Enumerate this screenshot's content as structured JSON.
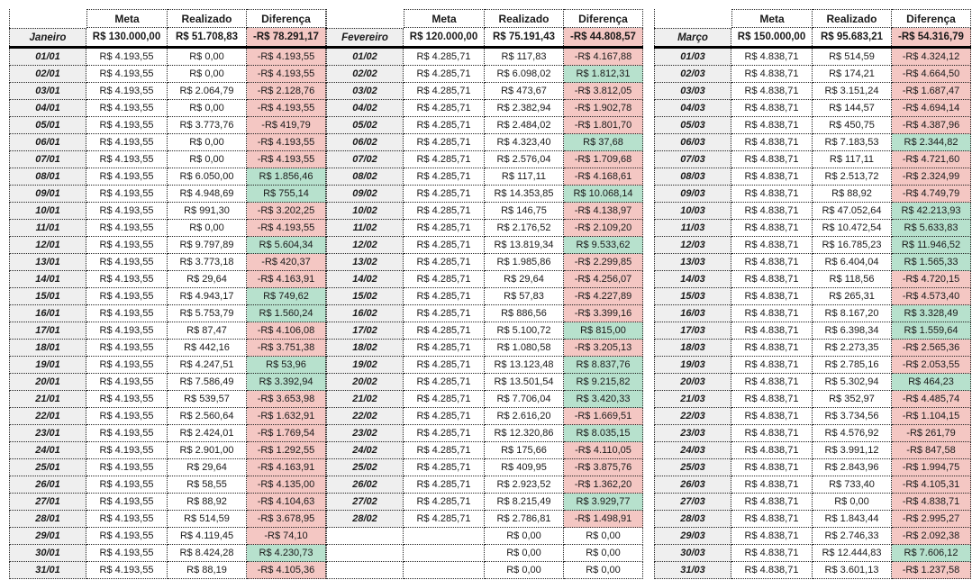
{
  "column_headers": [
    "Meta",
    "Realizado",
    "Diferença"
  ],
  "colors": {
    "negative_bg": "#f4c7c3",
    "positive_bg": "#b7e1cd",
    "label_bg": "#efefef",
    "border": "#222222"
  },
  "months": [
    {
      "name": "Janeiro",
      "meta_total": "R$ 130.000,00",
      "realizado_total": "R$ 51.708,83",
      "diferenca_total": "-R$ 78.291,17",
      "total_sign": "neg",
      "rows": [
        [
          "01/01",
          "R$ 4.193,55",
          "R$ 0,00",
          "-R$ 4.193,55",
          "neg"
        ],
        [
          "02/01",
          "R$ 4.193,55",
          "R$ 0,00",
          "-R$ 4.193,55",
          "neg"
        ],
        [
          "03/01",
          "R$ 4.193,55",
          "R$ 2.064,79",
          "-R$ 2.128,76",
          "neg"
        ],
        [
          "04/01",
          "R$ 4.193,55",
          "R$ 0,00",
          "-R$ 4.193,55",
          "neg"
        ],
        [
          "05/01",
          "R$ 4.193,55",
          "R$ 3.773,76",
          "-R$ 419,79",
          "neg"
        ],
        [
          "06/01",
          "R$ 4.193,55",
          "R$ 0,00",
          "-R$ 4.193,55",
          "neg"
        ],
        [
          "07/01",
          "R$ 4.193,55",
          "R$ 0,00",
          "-R$ 4.193,55",
          "neg"
        ],
        [
          "08/01",
          "R$ 4.193,55",
          "R$ 6.050,00",
          "R$ 1.856,46",
          "pos"
        ],
        [
          "09/01",
          "R$ 4.193,55",
          "R$ 4.948,69",
          "R$ 755,14",
          "pos"
        ],
        [
          "10/01",
          "R$ 4.193,55",
          "R$ 991,30",
          "-R$ 3.202,25",
          "neg"
        ],
        [
          "11/01",
          "R$ 4.193,55",
          "R$ 0,00",
          "-R$ 4.193,55",
          "neg"
        ],
        [
          "12/01",
          "R$ 4.193,55",
          "R$ 9.797,89",
          "R$ 5.604,34",
          "pos"
        ],
        [
          "13/01",
          "R$ 4.193,55",
          "R$ 3.773,18",
          "-R$ 420,37",
          "neg"
        ],
        [
          "14/01",
          "R$ 4.193,55",
          "R$ 29,64",
          "-R$ 4.163,91",
          "neg"
        ],
        [
          "15/01",
          "R$ 4.193,55",
          "R$ 4.943,17",
          "R$ 749,62",
          "pos"
        ],
        [
          "16/01",
          "R$ 4.193,55",
          "R$ 5.753,79",
          "R$ 1.560,24",
          "pos"
        ],
        [
          "17/01",
          "R$ 4.193,55",
          "R$ 87,47",
          "-R$ 4.106,08",
          "neg"
        ],
        [
          "18/01",
          "R$ 4.193,55",
          "R$ 442,16",
          "-R$ 3.751,38",
          "neg"
        ],
        [
          "19/01",
          "R$ 4.193,55",
          "R$ 4.247,51",
          "R$ 53,96",
          "pos"
        ],
        [
          "20/01",
          "R$ 4.193,55",
          "R$ 7.586,49",
          "R$ 3.392,94",
          "pos"
        ],
        [
          "21/01",
          "R$ 4.193,55",
          "R$ 539,57",
          "-R$ 3.653,98",
          "neg"
        ],
        [
          "22/01",
          "R$ 4.193,55",
          "R$ 2.560,64",
          "-R$ 1.632,91",
          "neg"
        ],
        [
          "23/01",
          "R$ 4.193,55",
          "R$ 2.424,01",
          "-R$ 1.769,54",
          "neg"
        ],
        [
          "24/01",
          "R$ 4.193,55",
          "R$ 2.901,00",
          "-R$ 1.292,55",
          "neg"
        ],
        [
          "25/01",
          "R$ 4.193,55",
          "R$ 29,64",
          "-R$ 4.163,91",
          "neg"
        ],
        [
          "26/01",
          "R$ 4.193,55",
          "R$ 58,55",
          "-R$ 4.135,00",
          "neg"
        ],
        [
          "27/01",
          "R$ 4.193,55",
          "R$ 88,92",
          "-R$ 4.104,63",
          "neg"
        ],
        [
          "28/01",
          "R$ 4.193,55",
          "R$ 514,59",
          "-R$ 3.678,95",
          "neg"
        ],
        [
          "29/01",
          "R$ 4.193,55",
          "R$ 4.119,45",
          "-R$ 74,10",
          "neg"
        ],
        [
          "30/01",
          "R$ 4.193,55",
          "R$ 8.424,28",
          "R$ 4.230,73",
          "pos"
        ],
        [
          "31/01",
          "R$ 4.193,55",
          "R$ 88,19",
          "-R$ 4.105,36",
          "neg"
        ]
      ]
    },
    {
      "name": "Fevereiro",
      "meta_total": "R$ 120.000,00",
      "realizado_total": "R$ 75.191,43",
      "diferenca_total": "-R$ 44.808,57",
      "total_sign": "neg",
      "rows": [
        [
          "01/02",
          "R$ 4.285,71",
          "R$ 117,83",
          "-R$ 4.167,88",
          "neg"
        ],
        [
          "02/02",
          "R$ 4.285,71",
          "R$ 6.098,02",
          "R$ 1.812,31",
          "pos"
        ],
        [
          "03/02",
          "R$ 4.285,71",
          "R$ 473,67",
          "-R$ 3.812,05",
          "neg"
        ],
        [
          "04/02",
          "R$ 4.285,71",
          "R$ 2.382,94",
          "-R$ 1.902,78",
          "neg"
        ],
        [
          "05/02",
          "R$ 4.285,71",
          "R$ 2.484,02",
          "-R$ 1.801,70",
          "neg"
        ],
        [
          "06/02",
          "R$ 4.285,71",
          "R$ 4.323,40",
          "R$ 37,68",
          "pos"
        ],
        [
          "07/02",
          "R$ 4.285,71",
          "R$ 2.576,04",
          "-R$ 1.709,68",
          "neg"
        ],
        [
          "08/02",
          "R$ 4.285,71",
          "R$ 117,11",
          "-R$ 4.168,61",
          "neg"
        ],
        [
          "09/02",
          "R$ 4.285,71",
          "R$ 14.353,85",
          "R$ 10.068,14",
          "pos"
        ],
        [
          "10/02",
          "R$ 4.285,71",
          "R$ 146,75",
          "-R$ 4.138,97",
          "neg"
        ],
        [
          "11/02",
          "R$ 4.285,71",
          "R$ 2.176,52",
          "-R$ 2.109,20",
          "neg"
        ],
        [
          "12/02",
          "R$ 4.285,71",
          "R$ 13.819,34",
          "R$ 9.533,62",
          "pos"
        ],
        [
          "13/02",
          "R$ 4.285,71",
          "R$ 1.985,86",
          "-R$ 2.299,85",
          "neg"
        ],
        [
          "14/02",
          "R$ 4.285,71",
          "R$ 29,64",
          "-R$ 4.256,07",
          "neg"
        ],
        [
          "15/02",
          "R$ 4.285,71",
          "R$ 57,83",
          "-R$ 4.227,89",
          "neg"
        ],
        [
          "16/02",
          "R$ 4.285,71",
          "R$ 886,56",
          "-R$ 3.399,16",
          "neg"
        ],
        [
          "17/02",
          "R$ 4.285,71",
          "R$ 5.100,72",
          "R$ 815,00",
          "pos"
        ],
        [
          "18/02",
          "R$ 4.285,71",
          "R$ 1.080,58",
          "-R$ 3.205,13",
          "neg"
        ],
        [
          "19/02",
          "R$ 4.285,71",
          "R$ 13.123,48",
          "R$ 8.837,76",
          "pos"
        ],
        [
          "20/02",
          "R$ 4.285,71",
          "R$ 13.501,54",
          "R$ 9.215,82",
          "pos"
        ],
        [
          "21/02",
          "R$ 4.285,71",
          "R$ 7.706,04",
          "R$ 3.420,33",
          "pos"
        ],
        [
          "22/02",
          "R$ 4.285,71",
          "R$ 2.616,20",
          "-R$ 1.669,51",
          "neg"
        ],
        [
          "23/02",
          "R$ 4.285,71",
          "R$ 12.320,86",
          "R$ 8.035,15",
          "pos"
        ],
        [
          "24/02",
          "R$ 4.285,71",
          "R$ 175,66",
          "-R$ 4.110,05",
          "neg"
        ],
        [
          "25/02",
          "R$ 4.285,71",
          "R$ 409,95",
          "-R$ 3.875,76",
          "neg"
        ],
        [
          "26/02",
          "R$ 4.285,71",
          "R$ 2.923,52",
          "-R$ 1.362,20",
          "neg"
        ],
        [
          "27/02",
          "R$ 4.285,71",
          "R$ 8.215,49",
          "R$ 3.929,77",
          "pos"
        ],
        [
          "28/02",
          "R$ 4.285,71",
          "R$ 2.786,81",
          "-R$ 1.498,91",
          "neg"
        ],
        [
          "",
          "",
          "R$ 0,00",
          "R$ 0,00",
          "zero"
        ],
        [
          "",
          "",
          "R$ 0,00",
          "R$ 0,00",
          "zero"
        ],
        [
          "",
          "",
          "R$ 0,00",
          "R$ 0,00",
          "zero"
        ]
      ]
    },
    {
      "name": "Março",
      "meta_total": "R$ 150.000,00",
      "realizado_total": "R$ 95.683,21",
      "diferenca_total": "-R$ 54.316,79",
      "total_sign": "neg",
      "rows": [
        [
          "01/03",
          "R$ 4.838,71",
          "R$ 514,59",
          "-R$ 4.324,12",
          "neg"
        ],
        [
          "02/03",
          "R$ 4.838,71",
          "R$ 174,21",
          "-R$ 4.664,50",
          "neg"
        ],
        [
          "03/03",
          "R$ 4.838,71",
          "R$ 3.151,24",
          "-R$ 1.687,47",
          "neg"
        ],
        [
          "04/03",
          "R$ 4.838,71",
          "R$ 144,57",
          "-R$ 4.694,14",
          "neg"
        ],
        [
          "05/03",
          "R$ 4.838,71",
          "R$ 450,75",
          "-R$ 4.387,96",
          "neg"
        ],
        [
          "06/03",
          "R$ 4.838,71",
          "R$ 7.183,53",
          "R$ 2.344,82",
          "pos"
        ],
        [
          "07/03",
          "R$ 4.838,71",
          "R$ 117,11",
          "-R$ 4.721,60",
          "neg"
        ],
        [
          "08/03",
          "R$ 4.838,71",
          "R$ 2.513,72",
          "-R$ 2.324,99",
          "neg"
        ],
        [
          "09/03",
          "R$ 4.838,71",
          "R$ 88,92",
          "-R$ 4.749,79",
          "neg"
        ],
        [
          "10/03",
          "R$ 4.838,71",
          "R$ 47.052,64",
          "R$ 42.213,93",
          "pos"
        ],
        [
          "11/03",
          "R$ 4.838,71",
          "R$ 10.472,54",
          "R$ 5.633,83",
          "pos"
        ],
        [
          "12/03",
          "R$ 4.838,71",
          "R$ 16.785,23",
          "R$ 11.946,52",
          "pos"
        ],
        [
          "13/03",
          "R$ 4.838,71",
          "R$ 6.404,04",
          "R$ 1.565,33",
          "pos"
        ],
        [
          "14/03",
          "R$ 4.838,71",
          "R$ 118,56",
          "-R$ 4.720,15",
          "neg"
        ],
        [
          "15/03",
          "R$ 4.838,71",
          "R$ 265,31",
          "-R$ 4.573,40",
          "neg"
        ],
        [
          "16/03",
          "R$ 4.838,71",
          "R$ 8.167,20",
          "R$ 3.328,49",
          "pos"
        ],
        [
          "17/03",
          "R$ 4.838,71",
          "R$ 6.398,34",
          "R$ 1.559,64",
          "pos"
        ],
        [
          "18/03",
          "R$ 4.838,71",
          "R$ 2.273,35",
          "-R$ 2.565,36",
          "neg"
        ],
        [
          "19/03",
          "R$ 4.838,71",
          "R$ 2.785,16",
          "-R$ 2.053,55",
          "neg"
        ],
        [
          "20/03",
          "R$ 4.838,71",
          "R$ 5.302,94",
          "R$ 464,23",
          "pos"
        ],
        [
          "21/03",
          "R$ 4.838,71",
          "R$ 352,97",
          "-R$ 4.485,74",
          "neg"
        ],
        [
          "22/03",
          "R$ 4.838,71",
          "R$ 3.734,56",
          "-R$ 1.104,15",
          "neg"
        ],
        [
          "23/03",
          "R$ 4.838,71",
          "R$ 4.576,92",
          "-R$ 261,79",
          "neg"
        ],
        [
          "24/03",
          "R$ 4.838,71",
          "R$ 3.991,12",
          "-R$ 847,58",
          "neg"
        ],
        [
          "25/03",
          "R$ 4.838,71",
          "R$ 2.843,96",
          "-R$ 1.994,75",
          "neg"
        ],
        [
          "26/03",
          "R$ 4.838,71",
          "R$ 733,40",
          "-R$ 4.105,31",
          "neg"
        ],
        [
          "27/03",
          "R$ 4.838,71",
          "R$ 0,00",
          "-R$ 4.838,71",
          "neg"
        ],
        [
          "28/03",
          "R$ 4.838,71",
          "R$ 1.843,44",
          "-R$ 2.995,27",
          "neg"
        ],
        [
          "29/03",
          "R$ 4.838,71",
          "R$ 2.746,33",
          "-R$ 2.092,38",
          "neg"
        ],
        [
          "30/03",
          "R$ 4.838,71",
          "R$ 12.444,83",
          "R$ 7.606,12",
          "pos"
        ],
        [
          "31/03",
          "R$ 4.838,71",
          "R$ 3.601,13",
          "-R$ 1.237,58",
          "neg"
        ]
      ]
    }
  ]
}
